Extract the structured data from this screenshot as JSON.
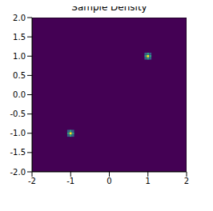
{
  "chart_data": {
    "type": "heatmap",
    "title": "Sample Density",
    "xlim": [
      -2,
      2
    ],
    "ylim": [
      -2,
      2
    ],
    "xticks": [
      -2,
      -1,
      0,
      1,
      2
    ],
    "yticks": [
      {
        "value": -2,
        "label": "-2.0"
      },
      {
        "value": -1.5,
        "label": "-1.5"
      },
      {
        "value": -1,
        "label": "-1.0"
      },
      {
        "value": -0.5,
        "label": "-0.5"
      },
      {
        "value": 0,
        "label": "0.0"
      },
      {
        "value": 0.5,
        "label": "0.5"
      },
      {
        "value": 1,
        "label": "1.0"
      },
      {
        "value": 1.5,
        "label": "1.5"
      },
      {
        "value": 2,
        "label": "2.0"
      }
    ],
    "zlim": [
      0,
      1
    ],
    "cell_size": 0.06,
    "cells": [
      {
        "x": -1.06,
        "y": -1.06,
        "value": 0.3
      },
      {
        "x": -1,
        "y": -1.06,
        "value": 0.55
      },
      {
        "x": -0.94,
        "y": -1.06,
        "value": 0.3
      },
      {
        "x": -1.06,
        "y": -1,
        "value": 0.55
      },
      {
        "x": -1,
        "y": -1,
        "value": 1
      },
      {
        "x": -0.94,
        "y": -1,
        "value": 0.55
      },
      {
        "x": -1.06,
        "y": -0.94,
        "value": 0.3
      },
      {
        "x": -1,
        "y": -0.94,
        "value": 0.55
      },
      {
        "x": -0.94,
        "y": -0.94,
        "value": 0.3
      },
      {
        "x": 0.94,
        "y": 0.94,
        "value": 0.3
      },
      {
        "x": 1,
        "y": 0.94,
        "value": 0.55
      },
      {
        "x": 1.06,
        "y": 0.94,
        "value": 0.3
      },
      {
        "x": 0.94,
        "y": 1,
        "value": 0.55
      },
      {
        "x": 1,
        "y": 1,
        "value": 1
      },
      {
        "x": 1.06,
        "y": 1,
        "value": 0.55
      },
      {
        "x": 0.94,
        "y": 1.06,
        "value": 0.3
      },
      {
        "x": 1,
        "y": 1.06,
        "value": 0.55
      },
      {
        "x": 1.06,
        "y": 1.06,
        "value": 0.3
      }
    ]
  }
}
